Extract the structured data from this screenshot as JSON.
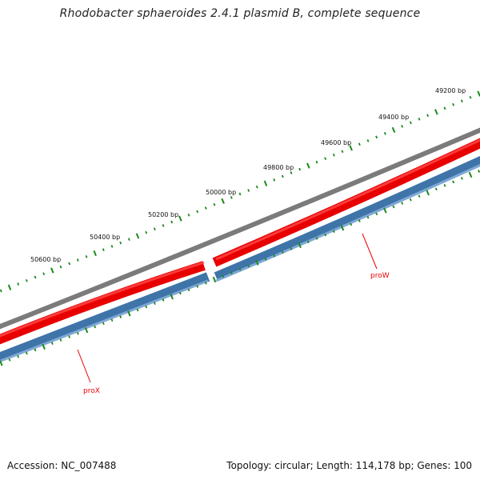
{
  "title": "Rhodobacter sphaeroides 2.4.1 plasmid B, complete sequence",
  "footer": {
    "accession": "Accession: NC_007488",
    "info": "Topology: circular; Length: 114,178 bp; Genes: 100"
  },
  "colors": {
    "backbone": "#808080",
    "forward_gene": "#ee0000",
    "reverse_gene": "#4a7fb5",
    "ticks": "#1a8a1a",
    "gene_label": "#ee0000"
  },
  "scale_labels": [
    "49200 bp",
    "49400 bp",
    "49600 bp",
    "49800 bp",
    "50000 bp",
    "50200 bp",
    "50400 bp",
    "50600 bp"
  ],
  "genes": [
    {
      "name": "proW",
      "strand": "forward-track"
    },
    {
      "name": "proX",
      "strand": "reverse-track"
    }
  ]
}
